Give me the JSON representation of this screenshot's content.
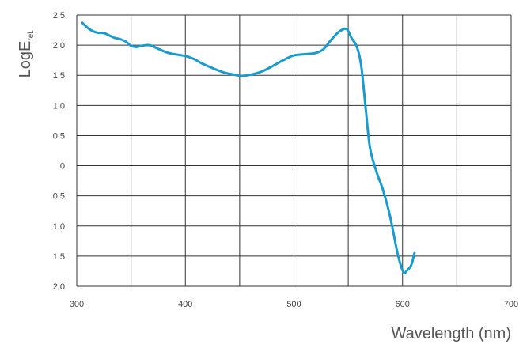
{
  "chart_data": {
    "type": "line",
    "title": "",
    "xlabel": "Wavelength (nm)",
    "ylabel": "LogE",
    "ylabel_subscript": "rel.",
    "xlim": [
      300,
      700
    ],
    "ylim": [
      -2.0,
      2.5
    ],
    "grid": true,
    "x_ticks": [
      300,
      400,
      500,
      600,
      700
    ],
    "y_ticks": [
      {
        "value": 2.5,
        "label": "2.5"
      },
      {
        "value": 2.0,
        "label": "2.0"
      },
      {
        "value": 1.5,
        "label": "1.5"
      },
      {
        "value": 1.0,
        "label": "1.0"
      },
      {
        "value": 0.5,
        "label": "0.5"
      },
      {
        "value": 0.0,
        "label": "0"
      },
      {
        "value": -0.5,
        "label": "0.5"
      },
      {
        "value": -1.0,
        "label": "1.0"
      },
      {
        "value": -1.5,
        "label": "1.5"
      },
      {
        "value": -2.0,
        "label": "2.0"
      }
    ],
    "series": [
      {
        "color": "#1a9bd0",
        "points": [
          [
            305,
            2.37
          ],
          [
            312,
            2.26
          ],
          [
            318,
            2.21
          ],
          [
            325,
            2.2
          ],
          [
            330,
            2.16
          ],
          [
            335,
            2.12
          ],
          [
            340,
            2.1
          ],
          [
            345,
            2.06
          ],
          [
            350,
            1.99
          ],
          [
            355,
            1.97
          ],
          [
            360,
            1.99
          ],
          [
            367,
            2.0
          ],
          [
            375,
            1.94
          ],
          [
            383,
            1.88
          ],
          [
            390,
            1.85
          ],
          [
            400,
            1.82
          ],
          [
            408,
            1.77
          ],
          [
            415,
            1.7
          ],
          [
            425,
            1.62
          ],
          [
            435,
            1.55
          ],
          [
            445,
            1.51
          ],
          [
            452,
            1.49
          ],
          [
            460,
            1.51
          ],
          [
            470,
            1.56
          ],
          [
            480,
            1.65
          ],
          [
            490,
            1.75
          ],
          [
            500,
            1.83
          ],
          [
            510,
            1.85
          ],
          [
            520,
            1.87
          ],
          [
            527,
            1.93
          ],
          [
            533,
            2.06
          ],
          [
            540,
            2.2
          ],
          [
            545,
            2.26
          ],
          [
            549,
            2.26
          ],
          [
            553,
            2.12
          ],
          [
            558,
            1.97
          ],
          [
            562,
            1.65
          ],
          [
            566,
            0.96
          ],
          [
            570,
            0.3
          ],
          [
            576,
            -0.1
          ],
          [
            582,
            -0.4
          ],
          [
            588,
            -0.8
          ],
          [
            592,
            -1.15
          ],
          [
            596,
            -1.5
          ],
          [
            601,
            -1.77
          ],
          [
            604,
            -1.74
          ],
          [
            608,
            -1.65
          ],
          [
            611,
            -1.45
          ]
        ]
      }
    ]
  }
}
